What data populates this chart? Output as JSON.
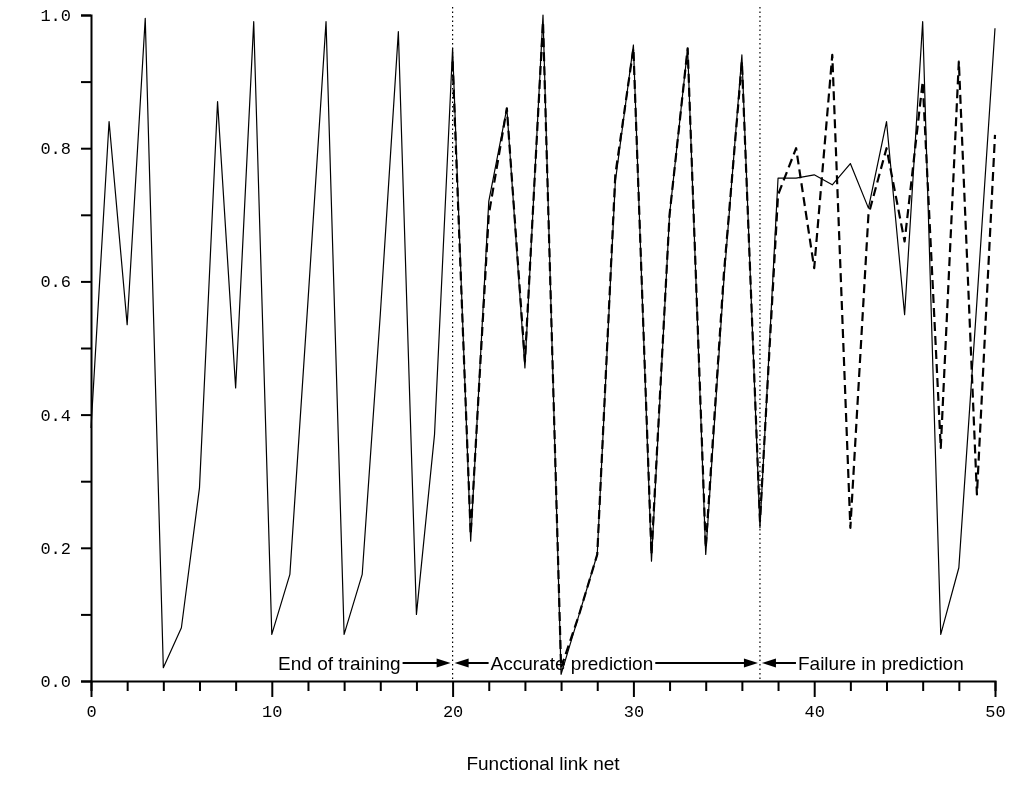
{
  "chart_data": {
    "type": "line",
    "xlabel": "Functional link net",
    "xlim": [
      0,
      50
    ],
    "ylim": [
      0,
      1
    ],
    "xticks": [
      0,
      {
        "value": 2,
        "label": null
      },
      {
        "value": 4,
        "label": null
      },
      {
        "value": 6,
        "label": null
      },
      {
        "value": 8,
        "label": null
      },
      10,
      {
        "value": 12,
        "label": null
      },
      {
        "value": 14,
        "label": null
      },
      {
        "value": 16,
        "label": null
      },
      {
        "value": 18,
        "label": null
      },
      20,
      {
        "value": 22,
        "label": null
      },
      {
        "value": 24,
        "label": null
      },
      {
        "value": 26,
        "label": null
      },
      {
        "value": 28,
        "label": null
      },
      30,
      {
        "value": 32,
        "label": null
      },
      {
        "value": 34,
        "label": null
      },
      {
        "value": 36,
        "label": null
      },
      {
        "value": 38,
        "label": null
      },
      40,
      {
        "value": 42,
        "label": null
      },
      {
        "value": 44,
        "label": null
      },
      {
        "value": 46,
        "label": null
      },
      {
        "value": 48,
        "label": null
      },
      50
    ],
    "yticks": [
      {
        "value": 0,
        "label": "0.0"
      },
      {
        "value": 0.1,
        "label": null
      },
      {
        "value": 0.2,
        "label": "0.2"
      },
      {
        "value": 0.3,
        "label": null
      },
      {
        "value": 0.4,
        "label": "0.4"
      },
      {
        "value": 0.5,
        "label": null
      },
      {
        "value": 0.6,
        "label": "0.6"
      },
      {
        "value": 0.7,
        "label": null
      },
      {
        "value": 0.8,
        "label": "0.8"
      },
      {
        "value": 0.9,
        "label": null
      },
      {
        "value": 1,
        "label": "1.0"
      }
    ],
    "grid": false,
    "series": [
      {
        "color": "#000000",
        "line_style": "solid",
        "x": [
          0,
          1,
          2,
          3,
          4,
          5,
          6,
          7,
          8,
          9,
          10,
          11,
          12,
          13,
          14,
          15,
          16,
          17,
          18,
          19,
          20,
          21,
          22,
          23,
          24,
          25,
          26,
          27,
          28,
          29,
          30,
          31,
          32,
          33,
          34,
          35,
          36,
          37,
          38,
          39,
          40,
          41,
          42,
          43,
          44,
          45,
          46,
          47,
          48,
          49,
          50
        ],
        "values": [
          0.38,
          0.84,
          0.535,
          0.995,
          0.02,
          0.08,
          0.29,
          0.87,
          0.44,
          0.99,
          0.07,
          0.16,
          0.57,
          0.99,
          0.07,
          0.16,
          0.55,
          0.975,
          0.1,
          0.37,
          0.95,
          0.21,
          0.72,
          0.86,
          0.47,
          1.0,
          0.01,
          0.1,
          0.19,
          0.75,
          0.955,
          0.18,
          0.7,
          0.95,
          0.19,
          0.6,
          0.94,
          0.23,
          0.755,
          0.755,
          0.76,
          0.745,
          0.777,
          0.71,
          0.84,
          0.55,
          0.99,
          0.07,
          0.17,
          0.57,
          0.98
        ]
      },
      {
        "color": "#000000",
        "line_style": "dashed",
        "x": [
          20,
          21,
          22,
          23,
          24,
          25,
          26,
          27,
          28,
          29,
          30,
          31,
          32,
          33,
          34,
          35,
          36,
          37,
          38,
          39,
          40,
          41,
          42,
          43,
          44,
          45,
          46,
          47,
          48,
          49,
          50
        ],
        "values": [
          0.93,
          0.22,
          0.7,
          0.86,
          0.48,
          0.99,
          0.02,
          0.1,
          0.19,
          0.76,
          0.95,
          0.19,
          0.7,
          0.95,
          0.2,
          0.61,
          0.93,
          0.24,
          0.73,
          0.8,
          0.62,
          0.94,
          0.23,
          0.7,
          0.8,
          0.66,
          0.9,
          0.35,
          0.93,
          0.28,
          0.82
        ]
      }
    ],
    "ref_lines": [
      {
        "axis": "x",
        "value": 20,
        "line_style": "dotted"
      },
      {
        "axis": "x",
        "value": 37,
        "line_style": "dotted"
      }
    ],
    "annotations": [
      "End of training",
      "Accurate prediction",
      "Failure in prediction"
    ]
  }
}
